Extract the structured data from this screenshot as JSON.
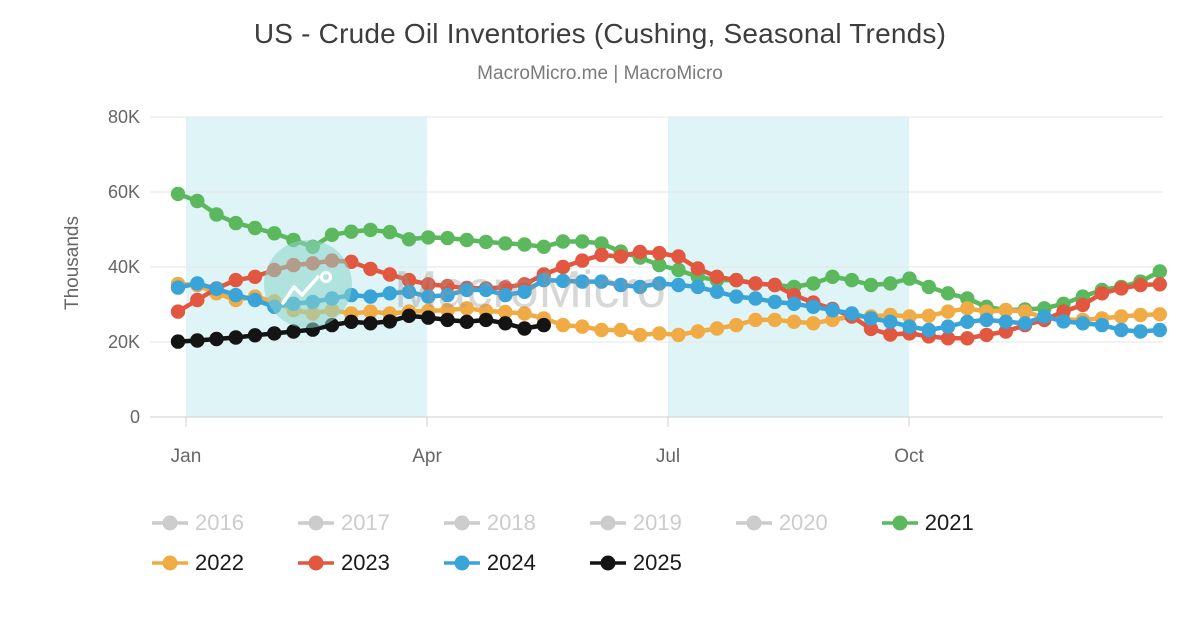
{
  "title": "US - Crude Oil Inventories (Cushing, Seasonal Trends)",
  "subtitle": "MacroMicro.me | MacroMicro",
  "watermark": {
    "text": "MacroMicro"
  },
  "chart_data": {
    "type": "line",
    "title": "US - Crude Oil Inventories (Cushing, Seasonal Trends)",
    "subtitle": "MacroMicro.me | MacroMicro",
    "x_unit": "week of year (Jan - Dec)",
    "ylabel": "Thousands",
    "ylim": [
      0,
      80000
    ],
    "grid": true,
    "y_ticks": [
      {
        "value": 80000,
        "label": "80K"
      },
      {
        "value": 60000,
        "label": "60K"
      },
      {
        "value": 40000,
        "label": "40K"
      },
      {
        "value": 20000,
        "label": "20K"
      },
      {
        "value": 0,
        "label": "0"
      }
    ],
    "x_ticks": [
      {
        "label": "Jan",
        "month_index": 0
      },
      {
        "label": "Apr",
        "month_index": 3
      },
      {
        "label": "Jul",
        "month_index": 6
      },
      {
        "label": "Oct",
        "month_index": 9
      }
    ],
    "seasonal_bands": [
      {
        "from_month": 0,
        "to_month": 3
      },
      {
        "from_month": 6,
        "to_month": 9
      }
    ],
    "seasonal_band_color": "#def4f7",
    "disabled_color": "#cccccc",
    "legend_position": "bottom-left, two rows",
    "series": [
      {
        "name": "2016",
        "color": "#cccccc",
        "visible": false,
        "values": []
      },
      {
        "name": "2017",
        "color": "#cccccc",
        "visible": false,
        "values": []
      },
      {
        "name": "2018",
        "color": "#cccccc",
        "visible": false,
        "values": []
      },
      {
        "name": "2019",
        "color": "#cccccc",
        "visible": false,
        "values": []
      },
      {
        "name": "2020",
        "color": "#cccccc",
        "visible": false,
        "values": []
      },
      {
        "name": "2021",
        "color": "#5cb85c",
        "visible": true,
        "values": [
          59500,
          57600,
          54000,
          51700,
          50400,
          49000,
          47200,
          45400,
          48600,
          49400,
          49900,
          49300,
          47400,
          47900,
          47700,
          47200,
          46700,
          46300,
          46000,
          45400,
          46800,
          46800,
          46300,
          44100,
          42500,
          40500,
          39200,
          37400,
          36500,
          36500,
          35600,
          35200,
          34700,
          35600,
          37400,
          36500,
          35200,
          35600,
          36900,
          34700,
          33000,
          31600,
          29400,
          28500,
          28700,
          29000,
          30200,
          32100,
          33900,
          34700,
          36100,
          38800
        ]
      },
      {
        "name": "2022",
        "color": "#f1ab44",
        "visible": true,
        "values": [
          35500,
          35200,
          33000,
          31200,
          32100,
          30800,
          28500,
          27600,
          28500,
          27600,
          28100,
          27600,
          28100,
          28300,
          28500,
          29000,
          28300,
          28000,
          27600,
          26300,
          24500,
          24100,
          23200,
          23200,
          21900,
          22300,
          21900,
          22800,
          23600,
          24500,
          25900,
          25900,
          25400,
          25000,
          25900,
          26800,
          26800,
          27200,
          26800,
          27000,
          28100,
          29000,
          28100,
          28500,
          28100,
          26500,
          26000,
          25900,
          26300,
          26800,
          27200,
          27400
        ]
      },
      {
        "name": "2023",
        "color": "#e2573f",
        "visible": true,
        "values": [
          28100,
          31200,
          34300,
          36500,
          37400,
          39200,
          40500,
          41000,
          41700,
          41400,
          39500,
          38000,
          36500,
          35400,
          34900,
          34400,
          34300,
          34600,
          35400,
          38000,
          40000,
          41700,
          43200,
          42800,
          44000,
          43700,
          42800,
          39600,
          37400,
          36500,
          35600,
          35200,
          32500,
          30500,
          28800,
          26800,
          23500,
          22000,
          22300,
          21500,
          21000,
          21000,
          21900,
          22800,
          24500,
          25900,
          28100,
          29900,
          33000,
          34300,
          35200,
          35400
        ]
      },
      {
        "name": "2024",
        "color": "#3aa3d8",
        "visible": true,
        "values": [
          34500,
          35600,
          34200,
          32500,
          31200,
          29400,
          30200,
          30700,
          31600,
          32500,
          32100,
          33000,
          33400,
          32100,
          32500,
          33900,
          33900,
          32500,
          33400,
          36500,
          36300,
          36100,
          36100,
          35200,
          34700,
          35600,
          35200,
          34700,
          33400,
          32100,
          31600,
          30700,
          30200,
          29400,
          28500,
          27600,
          26300,
          25400,
          24100,
          23200,
          24100,
          25400,
          25900,
          25400,
          25000,
          26800,
          25500,
          25000,
          24500,
          23200,
          22800,
          23200
        ]
      },
      {
        "name": "2025",
        "color": "#141414",
        "visible": true,
        "values": [
          20100,
          20400,
          20800,
          21200,
          21800,
          22300,
          22800,
          23300,
          24500,
          25400,
          25000,
          25500,
          27000,
          26500,
          25900,
          25400,
          25900,
          25000,
          23600,
          24500
        ]
      }
    ],
    "legend_rows": [
      [
        "2016",
        "2017",
        "2018",
        "2019",
        "2020",
        "2021"
      ],
      [
        "2022",
        "2023",
        "2024",
        "2025"
      ]
    ]
  }
}
